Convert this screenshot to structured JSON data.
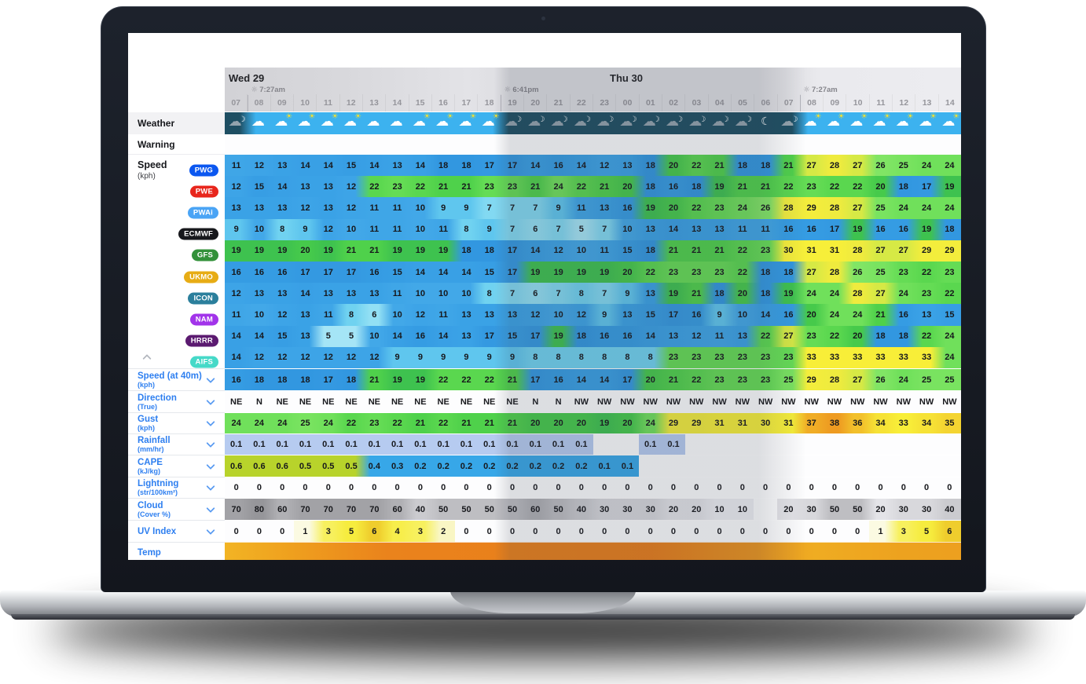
{
  "colors": {
    "weather_day_bg": "#3cb2ef",
    "weather_night_bg": "#1e4e62",
    "accent_blue": "#2e7ff0"
  },
  "header": {
    "day1_label": "Wed 29",
    "day2_label": "Thu 30",
    "sun_events": [
      {
        "time": "7:27am",
        "col_boundary": 1
      },
      {
        "time": "6:41pm",
        "col_boundary": 12
      },
      {
        "time": "7:27am",
        "col_boundary": 25
      }
    ],
    "hours": [
      "07",
      "08",
      "09",
      "10",
      "11",
      "12",
      "13",
      "14",
      "15",
      "16",
      "17",
      "18",
      "19",
      "20",
      "21",
      "22",
      "23",
      "00",
      "01",
      "02",
      "03",
      "04",
      "05",
      "06",
      "07",
      "08",
      "09",
      "10",
      "11",
      "12",
      "13",
      "14"
    ]
  },
  "sidebar": {
    "weather_label": "Weather",
    "warning_label": "Warning",
    "speed_label": "Speed",
    "speed_unit": "(kph)",
    "sections": [
      {
        "label": "Speed (at 40m)",
        "unit": "(kph)"
      },
      {
        "label": "Direction",
        "unit": "(True)"
      },
      {
        "label": "Gust",
        "unit": "(kph)"
      },
      {
        "label": "Rainfall",
        "unit": "(mm/hr)"
      },
      {
        "label": "CAPE",
        "unit": "(kJ/kg)"
      },
      {
        "label": "Lightning",
        "unit": "(str/100km²)"
      },
      {
        "label": "Cloud",
        "unit": "(Cover %)"
      },
      {
        "label": "UV Index",
        "unit": ""
      },
      {
        "label": "Temp",
        "unit": ""
      }
    ]
  },
  "weather_icons": [
    "cloud-moon",
    "cloud",
    "cloud-sun",
    "cloud-sun",
    "cloud-sun",
    "cloud-sun",
    "cloud",
    "cloud",
    "cloud-sun",
    "cloud-sun",
    "cloud-sun",
    "cloud-sun",
    "cloud-moon",
    "cloud-moon",
    "cloud-moon",
    "cloud-moon",
    "cloud-moon",
    "cloud-moon",
    "cloud-moon",
    "cloud-moon",
    "cloud-moon",
    "cloud-moon",
    "cloud-moon",
    "moon",
    "cloud-moon",
    "cloud-sun",
    "cloud-sun",
    "cloud-sun",
    "cloud-sun",
    "cloud-sun",
    "cloud-sun",
    "cloud-sun"
  ],
  "night_cols": [
    0,
    12,
    13,
    14,
    15,
    16,
    17,
    18,
    19,
    20,
    21,
    22,
    23,
    24
  ],
  "models": [
    {
      "name": "PWG",
      "badge_color": "#0b57f0",
      "values": [
        11,
        12,
        13,
        14,
        14,
        15,
        14,
        13,
        14,
        18,
        18,
        17,
        17,
        14,
        16,
        14,
        12,
        13,
        18,
        20,
        22,
        21,
        18,
        18,
        21,
        27,
        28,
        27,
        26,
        25,
        24,
        24
      ]
    },
    {
      "name": "PWE",
      "badge_color": "#e8261c",
      "values": [
        12,
        15,
        14,
        13,
        13,
        12,
        22,
        23,
        22,
        21,
        21,
        23,
        23,
        21,
        24,
        22,
        21,
        20,
        18,
        16,
        18,
        19,
        21,
        21,
        22,
        23,
        22,
        22,
        20,
        18,
        17,
        19
      ]
    },
    {
      "name": "PWAi",
      "badge_color": "#4aa4f5",
      "values": [
        13,
        13,
        13,
        12,
        13,
        12,
        11,
        11,
        10,
        9,
        9,
        7,
        7,
        7,
        9,
        11,
        13,
        16,
        19,
        20,
        22,
        23,
        24,
        26,
        28,
        29,
        28,
        27,
        25,
        24,
        24,
        24
      ]
    },
    {
      "name": "ECMWF",
      "badge_color": "#17181c",
      "values": [
        9,
        10,
        8,
        9,
        12,
        10,
        11,
        11,
        10,
        11,
        8,
        9,
        7,
        6,
        7,
        5,
        7,
        10,
        13,
        14,
        13,
        13,
        11,
        11,
        16,
        16,
        17,
        19,
        16,
        16,
        19,
        18
      ]
    },
    {
      "name": "GFS",
      "badge_color": "#33913a",
      "values": [
        19,
        19,
        19,
        20,
        19,
        21,
        21,
        19,
        19,
        19,
        18,
        18,
        17,
        14,
        12,
        10,
        11,
        15,
        18,
        21,
        21,
        21,
        22,
        23,
        30,
        31,
        31,
        28,
        27,
        27,
        29,
        29
      ]
    },
    {
      "name": "UKMO",
      "badge_color": "#e7ac15",
      "values": [
        16,
        16,
        16,
        17,
        17,
        17,
        16,
        15,
        14,
        14,
        14,
        15,
        17,
        19,
        19,
        19,
        19,
        20,
        22,
        23,
        23,
        23,
        22,
        18,
        18,
        27,
        28,
        26,
        25,
        23,
        22,
        23
      ]
    },
    {
      "name": "ICON",
      "badge_color": "#2b7f9c",
      "values": [
        12,
        13,
        13,
        14,
        13,
        13,
        13,
        11,
        10,
        10,
        10,
        8,
        7,
        6,
        7,
        8,
        7,
        9,
        13,
        19,
        21,
        18,
        20,
        18,
        19,
        24,
        24,
        28,
        27,
        24,
        23,
        22
      ]
    },
    {
      "name": "NAM",
      "badge_color": "#a234ea",
      "values": [
        11,
        10,
        12,
        13,
        11,
        8,
        6,
        10,
        12,
        11,
        13,
        13,
        13,
        12,
        10,
        12,
        9,
        13,
        15,
        17,
        16,
        9,
        10,
        14,
        16,
        20,
        24,
        24,
        21,
        16,
        13,
        15
      ]
    },
    {
      "name": "HRRR",
      "badge_color": "#5b1a70",
      "values": [
        14,
        14,
        15,
        13,
        5,
        5,
        10,
        14,
        16,
        14,
        13,
        17,
        15,
        17,
        19,
        18,
        16,
        16,
        14,
        13,
        12,
        11,
        13,
        22,
        27,
        23,
        22,
        20,
        18,
        18,
        22,
        24
      ]
    },
    {
      "name": "AIFS",
      "badge_color": "#46d9c8",
      "values": [
        14,
        12,
        12,
        12,
        12,
        12,
        12,
        9,
        9,
        9,
        9,
        9,
        9,
        8,
        8,
        8,
        8,
        8,
        8,
        23,
        23,
        23,
        23,
        23,
        23,
        33,
        33,
        33,
        33,
        33,
        33,
        24
      ]
    }
  ],
  "rows": {
    "speed40": [
      16,
      18,
      18,
      18,
      17,
      18,
      21,
      19,
      19,
      22,
      22,
      22,
      21,
      17,
      16,
      14,
      14,
      17,
      20,
      21,
      22,
      23,
      23,
      23,
      25,
      29,
      28,
      27,
      26,
      24,
      25,
      25
    ],
    "direction": [
      "NE",
      "N",
      "NE",
      "NE",
      "NE",
      "NE",
      "NE",
      "NE",
      "NE",
      "NE",
      "NE",
      "NE",
      "NE",
      "N",
      "N",
      "NW",
      "NW",
      "NW",
      "NW",
      "NW",
      "NW",
      "NW",
      "NW",
      "NW",
      "NW",
      "NW",
      "NW",
      "NW",
      "NW",
      "NW",
      "NW",
      "NW"
    ],
    "gust": [
      24,
      24,
      24,
      25,
      24,
      22,
      23,
      22,
      21,
      22,
      21,
      21,
      21,
      20,
      20,
      20,
      19,
      20,
      24,
      29,
      29,
      31,
      31,
      30,
      31,
      37,
      38,
      36,
      34,
      33,
      34,
      35
    ],
    "rainfall": [
      "0.1",
      "0.1",
      "0.1",
      "0.1",
      "0.1",
      "0.1",
      "0.1",
      "0.1",
      "0.1",
      "0.1",
      "0.1",
      "0.1",
      "0.1",
      "0.1",
      "0.1",
      "0.1",
      "",
      "",
      "0.1",
      "0.1",
      "",
      "",
      "",
      "",
      "",
      "",
      "",
      "",
      "",
      "",
      "",
      ""
    ],
    "cape": [
      "0.6",
      "0.6",
      "0.6",
      "0.5",
      "0.5",
      "0.5",
      "0.4",
      "0.3",
      "0.2",
      "0.2",
      "0.2",
      "0.2",
      "0.2",
      "0.2",
      "0.2",
      "0.2",
      "0.1",
      "0.1",
      "",
      "",
      "",
      "",
      "",
      "",
      "",
      "",
      "",
      "",
      "",
      "",
      "",
      ""
    ],
    "lightning": [
      "0",
      "0",
      "0",
      "0",
      "0",
      "0",
      "0",
      "0",
      "0",
      "0",
      "0",
      "0",
      "0",
      "0",
      "0",
      "0",
      "0",
      "0",
      "0",
      "0",
      "0",
      "0",
      "0",
      "0",
      "0",
      "0",
      "0",
      "0",
      "0",
      "0",
      "0",
      "0"
    ],
    "cloud": [
      "70",
      "80",
      "60",
      "70",
      "70",
      "70",
      "70",
      "60",
      "40",
      "50",
      "50",
      "50",
      "50",
      "60",
      "50",
      "40",
      "30",
      "30",
      "30",
      "20",
      "20",
      "10",
      "10",
      "",
      "20",
      "30",
      "50",
      "50",
      "20",
      "30",
      "30",
      "40"
    ],
    "uv": [
      "0",
      "0",
      "0",
      "1",
      "3",
      "5",
      "6",
      "4",
      "3",
      "2",
      "0",
      "0",
      "0",
      "0",
      "0",
      "0",
      "0",
      "0",
      "0",
      "0",
      "0",
      "0",
      "0",
      "0",
      "0",
      "0",
      "0",
      "0",
      "1",
      "3",
      "5",
      "6"
    ]
  }
}
